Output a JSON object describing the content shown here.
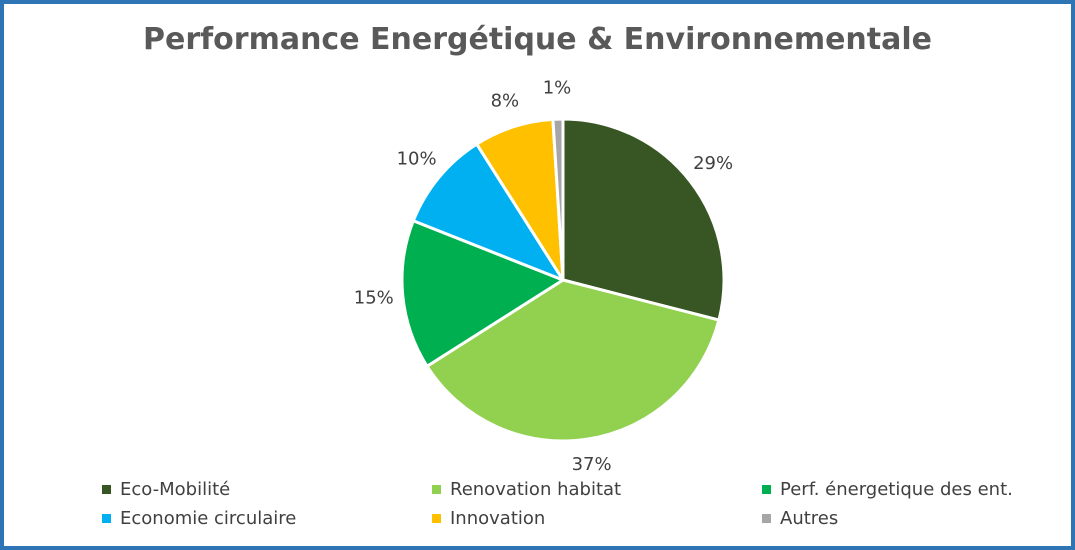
{
  "chart_data": {
    "type": "pie",
    "title": "Performance Energétique & Environnementale",
    "categories": [
      "Eco-Mobilité",
      "Renovation habitat",
      "Perf. énergetique des ent.",
      "Economie circulaire",
      "Innovation",
      "Autres"
    ],
    "values": [
      29,
      37,
      15,
      10,
      8,
      1
    ],
    "data_labels": [
      "29%",
      "37%",
      "15%",
      "10%",
      "8%",
      "1%"
    ],
    "colors": [
      "#375623",
      "#92d050",
      "#00b050",
      "#00b0f0",
      "#ffc000",
      "#a6a6a6"
    ],
    "legend_position": "bottom",
    "start_angle": "top, clockwise"
  },
  "frame_color": "#2e75b6"
}
